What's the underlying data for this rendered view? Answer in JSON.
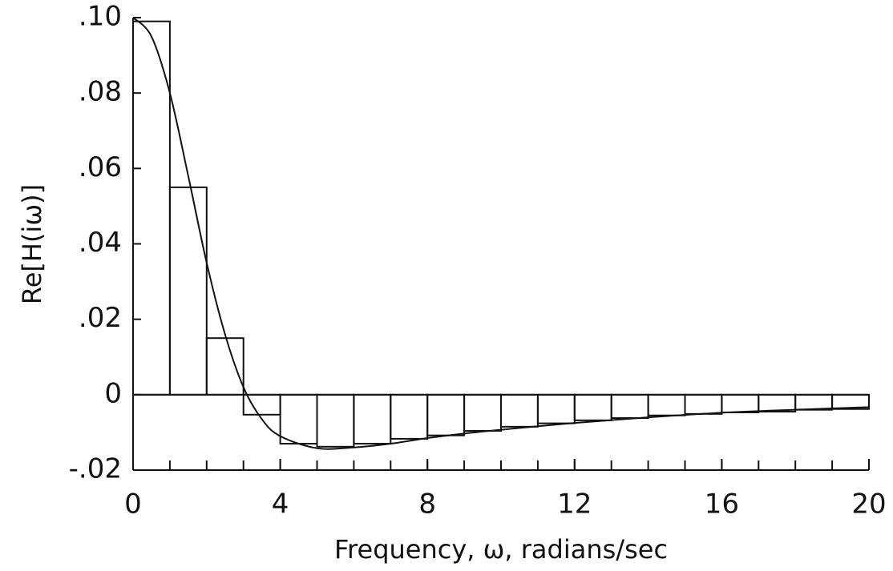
{
  "chart_data": {
    "type": "histogram",
    "x_label": "Frequency, ω, radians/sec",
    "y_label": "Re[H(iω)]",
    "bins": [
      0,
      1,
      2,
      3,
      4,
      5,
      6,
      7,
      8,
      9,
      10,
      11,
      12,
      13,
      14,
      15,
      16,
      17,
      18,
      19,
      20
    ],
    "values": [
      0.099,
      0.055,
      0.015,
      -0.0053,
      -0.013,
      -0.0138,
      -0.013,
      -0.0117,
      -0.0108,
      -0.0096,
      -0.0085,
      -0.0076,
      -0.0068,
      -0.0062,
      -0.0055,
      -0.0051,
      -0.0047,
      -0.0045,
      -0.004,
      -0.0038
    ],
    "line": {
      "x": [
        0,
        0.5,
        1,
        1.5,
        2,
        2.5,
        3,
        3.5,
        4,
        5,
        6,
        7,
        8,
        9,
        10,
        12,
        14,
        16,
        18,
        20
      ],
      "values": [
        0.1,
        0.095,
        0.08,
        0.058,
        0.035,
        0.016,
        0.002,
        -0.0065,
        -0.011,
        -0.0142,
        -0.014,
        -0.013,
        -0.0115,
        -0.0103,
        -0.0093,
        -0.0075,
        -0.006,
        -0.0048,
        -0.004,
        -0.0033
      ]
    },
    "color": "#111111",
    "xlim": [
      0,
      20
    ],
    "ylim": [
      -0.02,
      0.1
    ],
    "xticks": [
      0,
      4,
      8,
      12,
      16,
      20
    ],
    "yticks": [
      {
        "value": -0.02,
        "label": "-.02"
      },
      0,
      {
        "value": 0.02,
        "label": ".02"
      },
      {
        "value": 0.04,
        "label": ".04"
      },
      {
        "value": 0.06,
        "label": ".06"
      },
      {
        "value": 0.08,
        "label": ".08"
      },
      {
        "value": 0.1,
        "label": ".10"
      }
    ]
  }
}
